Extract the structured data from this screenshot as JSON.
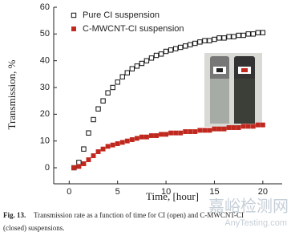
{
  "chart_data": {
    "type": "scatter",
    "x_label": "Time, [hour]",
    "y_label": "Transmission, %",
    "x": [
      0.5,
      1,
      1.5,
      2,
      2.5,
      3,
      3.5,
      4,
      4.5,
      5,
      5.5,
      6,
      6.5,
      7,
      7.5,
      8,
      8.5,
      9,
      9.5,
      10,
      10.5,
      11,
      11.5,
      12,
      12.5,
      13,
      13.5,
      14,
      14.5,
      15,
      15.5,
      16,
      16.5,
      17,
      17.5,
      18,
      18.5,
      19,
      19.5,
      20
    ],
    "series": [
      {
        "name": "Pure CI suspension",
        "color": "#111111",
        "marker": "open-square",
        "values": [
          0,
          2,
          7,
          13,
          18,
          22,
          25,
          28,
          30,
          32,
          34,
          35.5,
          37,
          38,
          39,
          40,
          41,
          42,
          42.5,
          43.5,
          44,
          44.5,
          45,
          45.5,
          46,
          46.5,
          47,
          47.5,
          47.5,
          48,
          48.5,
          48.5,
          49,
          49,
          49.5,
          49.5,
          50,
          50,
          50.5,
          50.5
        ]
      },
      {
        "name": "C-MWCNT-CI suspension",
        "color": "#c0281e",
        "marker": "filled-square",
        "values": [
          0,
          0.5,
          1.5,
          3,
          4.5,
          6,
          7,
          8,
          8.5,
          9,
          9.5,
          10,
          10.5,
          11,
          11.5,
          11.5,
          12,
          12,
          12.5,
          12.5,
          13,
          13,
          13,
          13.5,
          13.5,
          13.5,
          14,
          14,
          14,
          14.5,
          14.5,
          14.5,
          15,
          15,
          15,
          15.5,
          15.5,
          15.5,
          16,
          16
        ]
      }
    ],
    "xlim": [
      -1.6,
      22
    ],
    "xticks": [
      0,
      5,
      10,
      15,
      20
    ],
    "ylim": [
      -6,
      60
    ],
    "yticks": [
      0,
      10,
      20,
      30,
      40,
      50,
      60
    ],
    "legend": "upper-left",
    "caption_label": "Fig. 13.",
    "caption_lines": [
      "Transmission rate as a function of time for CI (open) and C-MWCNT-CI",
      "(closed) suspensions."
    ],
    "watermark": [
      "嘉峪检测网",
      "AnyTesting.com"
    ]
  }
}
